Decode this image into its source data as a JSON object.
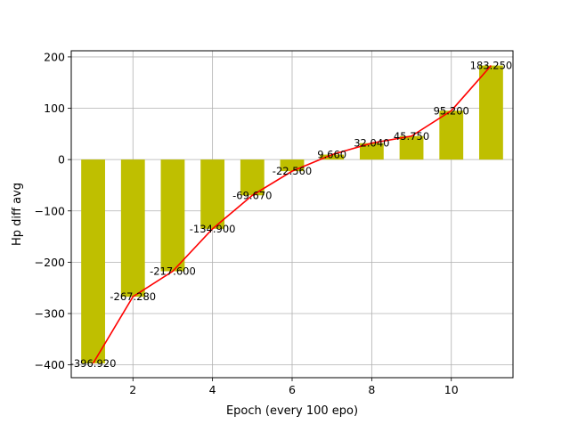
{
  "chart_data": {
    "type": "bar",
    "title": "",
    "xlabel": "Epoch (every 100 epo)",
    "ylabel": "Hp diff avg",
    "x": [
      1,
      2,
      3,
      4,
      5,
      6,
      7,
      8,
      9,
      10,
      11
    ],
    "values": [
      -396.92,
      -267.28,
      -217.6,
      -134.9,
      -69.67,
      -22.56,
      9.66,
      32.04,
      45.75,
      95.2,
      183.25
    ],
    "data_labels": [
      "-396.920",
      "-267.280",
      "-217.600",
      "-134.900",
      "-69.670",
      "-22.560",
      "9.660",
      "32.040",
      "45.750",
      "95.200",
      "183.250"
    ],
    "series": [
      {
        "kind": "bar",
        "values": [
          -396.92,
          -267.28,
          -217.6,
          -134.9,
          -69.67,
          -22.56,
          9.66,
          32.04,
          45.75,
          95.2,
          183.25
        ],
        "color": "#bfbf00"
      },
      {
        "kind": "line",
        "values": [
          -396.92,
          -267.28,
          -217.6,
          -134.9,
          -69.67,
          -22.56,
          9.66,
          32.04,
          45.75,
          95.2,
          183.25
        ],
        "color": "#ff0000"
      }
    ],
    "xlim": [
      0.45,
      11.55
    ],
    "ylim": [
      -425,
      212
    ],
    "xticks": [
      2,
      4,
      6,
      8,
      10
    ],
    "yticks": [
      -400,
      -300,
      -200,
      -100,
      0,
      100,
      200
    ],
    "grid": true,
    "legend": "none"
  }
}
